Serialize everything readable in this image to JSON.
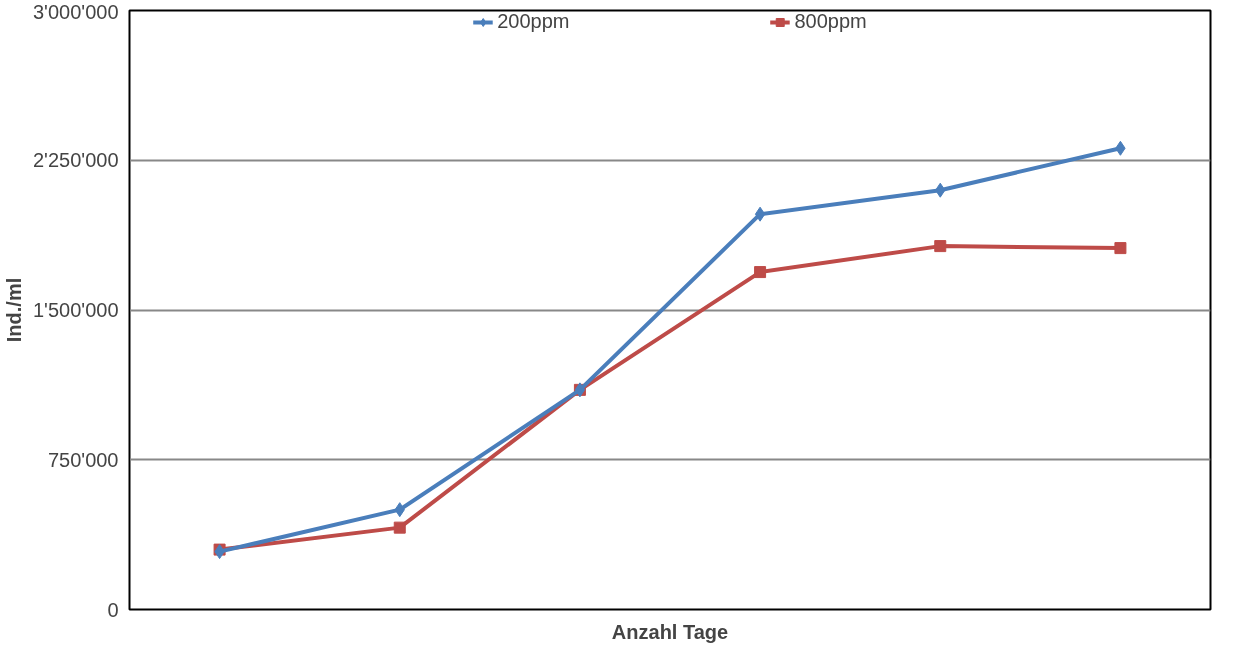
{
  "chart_data": {
    "type": "line",
    "xlabel": "Anzahl Tage",
    "ylabel": "Ind./ml",
    "categories": [
      null,
      null,
      null,
      null,
      null,
      null
    ],
    "series": [
      {
        "name": "200ppm",
        "color": "#4a7ebb",
        "marker": "diamond",
        "values": [
          290000,
          500000,
          1100000,
          1980000,
          2100000,
          2310000
        ]
      },
      {
        "name": "800ppm",
        "color": "#be4b48",
        "marker": "square",
        "values": [
          300000,
          410000,
          1100000,
          1690000,
          1820000,
          1810000
        ]
      }
    ],
    "ylim": [
      0,
      3000000
    ],
    "yticks": [
      0,
      {
        "value": 750000,
        "label": "750'000"
      },
      {
        "value": 1500000,
        "label": "1'500'000"
      },
      {
        "value": 2250000,
        "label": "2'250'000"
      },
      {
        "value": 3000000,
        "label": "3'000'000"
      }
    ],
    "grid": "y",
    "legend": "top",
    "tick_labels": "y"
  }
}
